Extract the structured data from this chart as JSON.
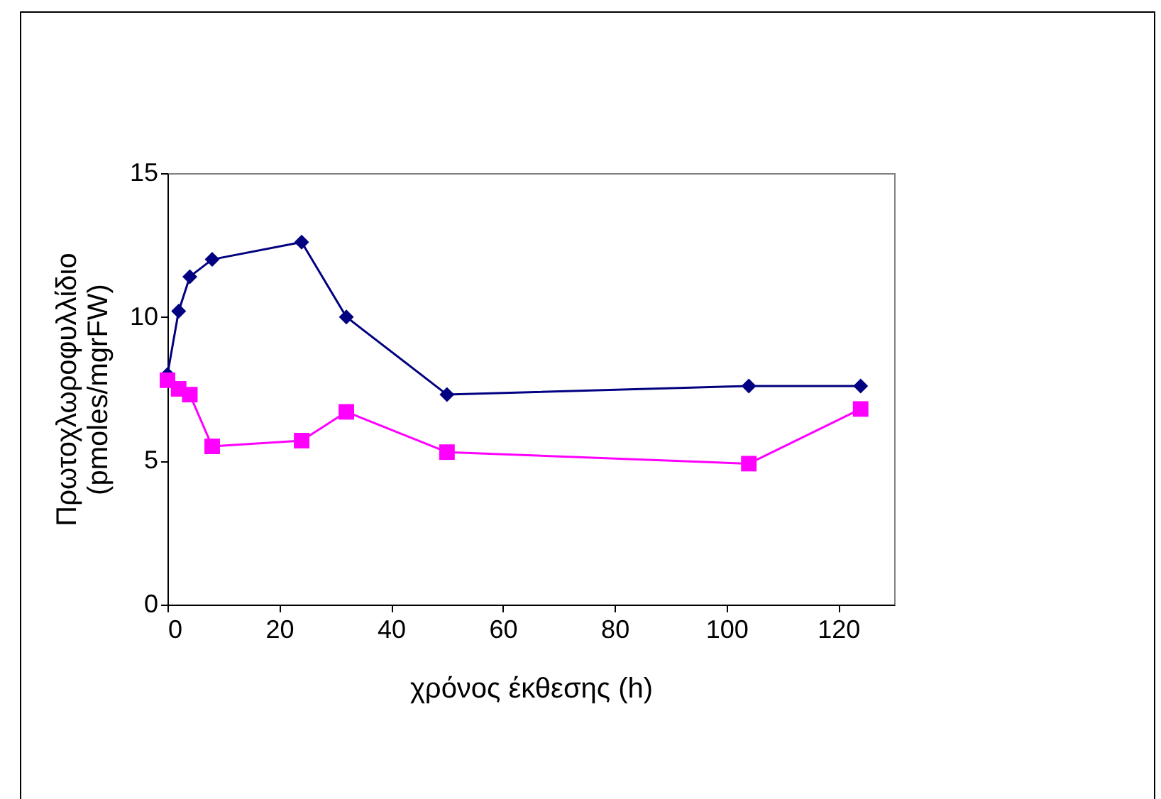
{
  "chart_data": {
    "type": "line",
    "xlabel": "χρόνος έκθεσης (h)",
    "ylabel": "Πρωτοχλωροφυλλίδιο\n(pmoles/mgrFW)",
    "x": [
      0,
      2,
      4,
      8,
      24,
      32,
      50,
      104,
      124
    ],
    "series": [
      {
        "color": "#000080",
        "marker": "diamond",
        "values": [
          8.0,
          10.2,
          11.4,
          12.0,
          12.6,
          10.0,
          7.3,
          7.6,
          7.6
        ]
      },
      {
        "color": "#ff00ff",
        "marker": "square",
        "values": [
          7.8,
          7.5,
          7.3,
          5.5,
          5.7,
          6.7,
          5.3,
          4.9,
          6.8
        ]
      }
    ],
    "xlim": [
      0,
      130
    ],
    "xticks": [
      0,
      20,
      40,
      60,
      80,
      100,
      120
    ],
    "ylim": [
      0,
      15
    ],
    "yticks": [
      0,
      5,
      10,
      15
    ],
    "grid": false,
    "line_style": "solid"
  }
}
